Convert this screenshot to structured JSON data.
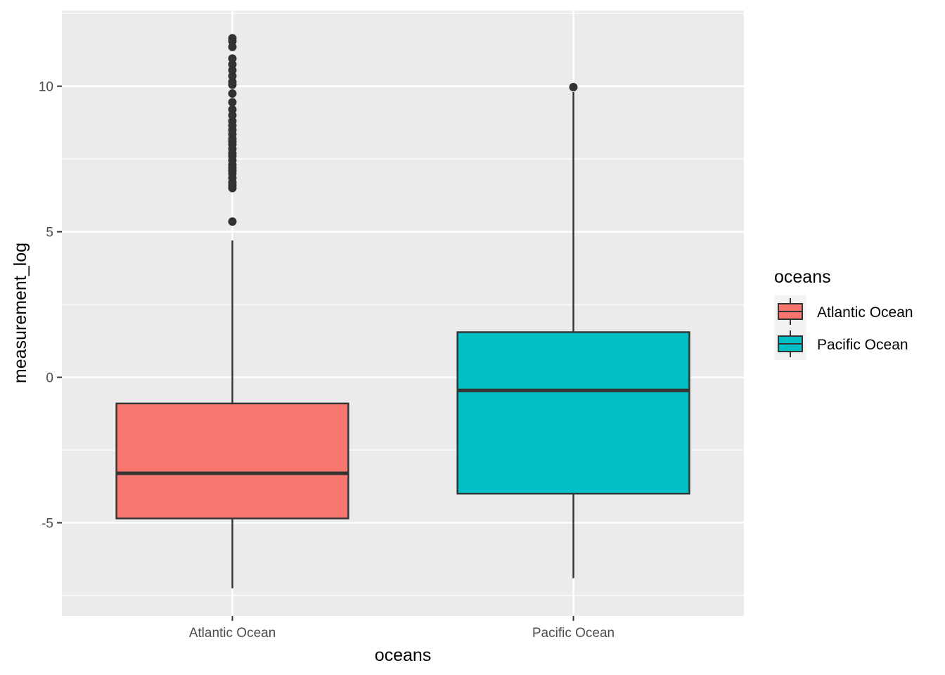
{
  "chart_data": {
    "type": "boxplot",
    "xlabel": "oceans",
    "ylabel": "measurement_log",
    "ylim": [
      -8.2,
      12.6
    ],
    "yticks": [
      -5,
      0,
      5,
      10
    ],
    "ytick_labels": [
      "-5",
      "0",
      "5",
      "10"
    ],
    "grid": true,
    "legend": {
      "title": "oceans",
      "placement": "right",
      "entries": [
        "Atlantic Ocean",
        "Pacific Ocean"
      ]
    },
    "categories": [
      "Atlantic Ocean",
      "Pacific Ocean"
    ],
    "colors": [
      "#F8766D",
      "#00BFC4"
    ],
    "panel_background": "#EBEBEB",
    "series": [
      {
        "name": "Atlantic Ocean",
        "whisker_low": -7.25,
        "q1": -4.85,
        "median": -3.3,
        "q3": -0.9,
        "whisker_high": 4.7,
        "outliers": [
          5.35,
          6.5,
          6.6,
          6.7,
          6.85,
          7.0,
          7.1,
          7.2,
          7.3,
          7.45,
          7.6,
          7.7,
          7.85,
          8.0,
          8.1,
          8.2,
          8.35,
          8.5,
          8.65,
          8.8,
          9.0,
          9.2,
          9.45,
          9.75,
          10.05,
          10.15,
          10.35,
          10.55,
          10.75,
          10.95,
          11.35,
          11.55,
          11.65
        ]
      },
      {
        "name": "Pacific Ocean",
        "whisker_low": -6.9,
        "q1": -4.0,
        "median": -0.45,
        "q3": 1.55,
        "whisker_high": 9.8,
        "outliers": [
          9.97
        ]
      }
    ]
  }
}
